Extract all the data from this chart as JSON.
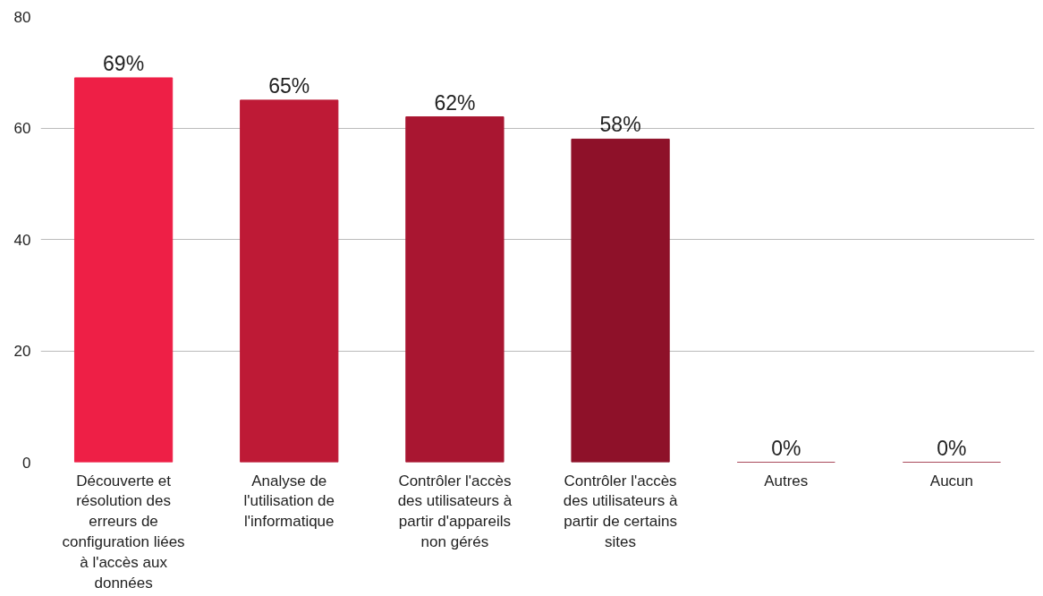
{
  "chart_data": {
    "type": "bar",
    "categories": [
      "Découverte et résolution des erreurs de configuration liées à l'accès aux données",
      "Analyse de l'utilisation de l'informatique",
      "Contrôler l'accès des utilisateurs à partir d'appareils non gérés",
      "Contrôler l'accès des utilisateurs à partir de certains sites",
      "Autres",
      "Aucun"
    ],
    "values": [
      69,
      65,
      62,
      58,
      0,
      0
    ],
    "colors": [
      "#ee1f46",
      "#be1a36",
      "#a91631",
      "#8e1129",
      "#8e1129",
      "#8e1129"
    ],
    "value_labels": [
      "69%",
      "65%",
      "62%",
      "58%",
      "0%",
      "0%"
    ],
    "ylim": [
      0,
      80
    ],
    "yticks": [
      0,
      20,
      40,
      60,
      80
    ],
    "grid": "y"
  }
}
